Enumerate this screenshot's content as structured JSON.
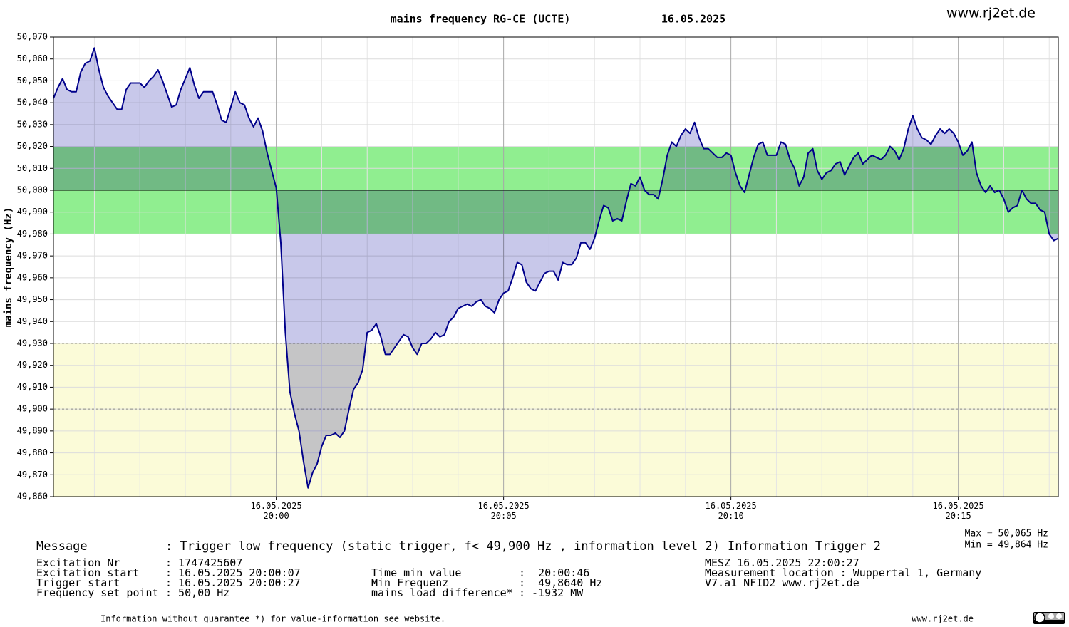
{
  "chart_data": {
    "type": "line",
    "title": "mains frequency RG-CE (UCTE)",
    "date": "16.05.2025",
    "site": "www.rj2et.de",
    "ylabel": "mains frequency (Hz)",
    "color": "#00008b",
    "area_color": "#c8c8ea",
    "grid": true,
    "xlim": [
      1195.1,
      1217.2
    ],
    "xticks": [
      {
        "value": 1200,
        "label": "16.05.2025\n20:00"
      },
      {
        "value": 1205,
        "label": "16.05.2025\n20:05"
      },
      {
        "value": 1210,
        "label": "16.05.2025\n20:10"
      },
      {
        "value": 1215,
        "label": "16.05.2025\n20:15"
      }
    ],
    "xminorticks": [
      1196,
      1197,
      1198,
      1199,
      1201,
      1202,
      1203,
      1204,
      1206,
      1207,
      1208,
      1209,
      1211,
      1212,
      1213,
      1214,
      1216,
      1217
    ],
    "ylim": [
      49.86,
      50.07
    ],
    "yticks": [
      {
        "value": 49.86,
        "label": "49,860"
      },
      {
        "value": 49.87,
        "label": "49,870"
      },
      {
        "value": 49.88,
        "label": "49,880"
      },
      {
        "value": 49.89,
        "label": "49,890"
      },
      {
        "value": 49.9,
        "label": "49,900"
      },
      {
        "value": 49.91,
        "label": "49,910"
      },
      {
        "value": 49.92,
        "label": "49,920"
      },
      {
        "value": 49.93,
        "label": "49,930"
      },
      {
        "value": 49.94,
        "label": "49,940"
      },
      {
        "value": 49.95,
        "label": "49,950"
      },
      {
        "value": 49.96,
        "label": "49,960"
      },
      {
        "value": 49.97,
        "label": "49,970"
      },
      {
        "value": 49.98,
        "label": "49,980"
      },
      {
        "value": 49.99,
        "label": "49,990"
      },
      {
        "value": 50,
        "label": "50,000"
      },
      {
        "value": 50.01,
        "label": "50,010"
      },
      {
        "value": 50.02,
        "label": "50,020"
      },
      {
        "value": 50.03,
        "label": "50,030"
      },
      {
        "value": 50.04,
        "label": "50,040"
      },
      {
        "value": 50.05,
        "label": "50,050"
      },
      {
        "value": 50.06,
        "label": "50,060"
      },
      {
        "value": 50.07,
        "label": "50,070"
      }
    ],
    "baseline": 50,
    "bands": [
      {
        "from": 49.98,
        "to": 50.02,
        "color": "#90ee90"
      },
      {
        "from": 49.86,
        "to": 49.93,
        "color": "#fbfbd8"
      }
    ],
    "reference_lines": [
      49.93,
      49.9
    ],
    "x": [
      1195.1,
      1195.2,
      1195.3,
      1195.4,
      1195.5,
      1195.6,
      1195.7,
      1195.8,
      1195.9,
      1196,
      1196.1,
      1196.2,
      1196.3,
      1196.4,
      1196.5,
      1196.6,
      1196.7,
      1196.8,
      1196.9,
      1197,
      1197.1,
      1197.2,
      1197.3,
      1197.4,
      1197.5,
      1197.6,
      1197.7,
      1197.8,
      1197.9,
      1198,
      1198.1,
      1198.2,
      1198.3,
      1198.4,
      1198.5,
      1198.6,
      1198.7,
      1198.8,
      1198.9,
      1199,
      1199.1,
      1199.2,
      1199.3,
      1199.4,
      1199.5,
      1199.6,
      1199.7,
      1199.8,
      1199.9,
      1200,
      1200.1,
      1200.2,
      1200.3,
      1200.4,
      1200.5,
      1200.6,
      1200.7,
      1200.8,
      1200.9,
      1201,
      1201.1,
      1201.2,
      1201.3,
      1201.4,
      1201.5,
      1201.6,
      1201.7,
      1201.8,
      1201.9,
      1202,
      1202.1,
      1202.2,
      1202.3,
      1202.4,
      1202.5,
      1202.6,
      1202.7,
      1202.8,
      1202.9,
      1203,
      1203.1,
      1203.2,
      1203.3,
      1203.4,
      1203.5,
      1203.6,
      1203.7,
      1203.8,
      1203.9,
      1204,
      1204.1,
      1204.2,
      1204.3,
      1204.4,
      1204.5,
      1204.6,
      1204.7,
      1204.8,
      1204.9,
      1205,
      1205.1,
      1205.2,
      1205.3,
      1205.4,
      1205.5,
      1205.6,
      1205.7,
      1205.8,
      1205.9,
      1206,
      1206.1,
      1206.2,
      1206.3,
      1206.4,
      1206.5,
      1206.6,
      1206.7,
      1206.8,
      1206.9,
      1207,
      1207.1,
      1207.2,
      1207.3,
      1207.4,
      1207.5,
      1207.6,
      1207.7,
      1207.8,
      1207.9,
      1208,
      1208.1,
      1208.2,
      1208.3,
      1208.4,
      1208.5,
      1208.6,
      1208.7,
      1208.8,
      1208.9,
      1209,
      1209.1,
      1209.2,
      1209.3,
      1209.4,
      1209.5,
      1209.6,
      1209.7,
      1209.8,
      1209.9,
      1210,
      1210.1,
      1210.2,
      1210.3,
      1210.4,
      1210.5,
      1210.6,
      1210.7,
      1210.8,
      1210.9,
      1211,
      1211.1,
      1211.2,
      1211.3,
      1211.4,
      1211.5,
      1211.6,
      1211.7,
      1211.8,
      1211.9,
      1212,
      1212.1,
      1212.2,
      1212.3,
      1212.4,
      1212.5,
      1212.6,
      1212.7,
      1212.8,
      1212.9,
      1213,
      1213.1,
      1213.2,
      1213.3,
      1213.4,
      1213.5,
      1213.6,
      1213.7,
      1213.8,
      1213.9,
      1214,
      1214.1,
      1214.2,
      1214.3,
      1214.4,
      1214.5,
      1214.6,
      1214.7,
      1214.8,
      1214.9,
      1215,
      1215.1,
      1215.2,
      1215.3,
      1215.4,
      1215.5,
      1215.6,
      1215.7,
      1215.8,
      1215.9,
      1216,
      1216.1,
      1216.2,
      1216.3,
      1216.4,
      1216.5,
      1216.6,
      1216.7,
      1216.8,
      1216.9,
      1217,
      1217.1,
      1217.2
    ],
    "values": [
      50.042,
      50.047,
      50.051,
      50.046,
      50.045,
      50.045,
      50.054,
      50.058,
      50.059,
      50.065,
      50.055,
      50.047,
      50.043,
      50.04,
      50.037,
      50.037,
      50.046,
      50.049,
      50.049,
      50.049,
      50.047,
      50.05,
      50.052,
      50.055,
      50.05,
      50.044,
      50.038,
      50.039,
      50.046,
      50.051,
      50.056,
      50.048,
      50.042,
      50.045,
      50.045,
      50.045,
      50.039,
      50.032,
      50.031,
      50.038,
      50.045,
      50.04,
      50.039,
      50.033,
      50.029,
      50.033,
      50.027,
      50.017,
      50.009,
      50.001,
      49.976,
      49.935,
      49.908,
      49.898,
      49.89,
      49.876,
      49.864,
      49.871,
      49.875,
      49.883,
      49.888,
      49.888,
      49.889,
      49.887,
      49.89,
      49.9,
      49.909,
      49.912,
      49.918,
      49.935,
      49.936,
      49.939,
      49.933,
      49.925,
      49.925,
      49.928,
      49.931,
      49.934,
      49.933,
      49.928,
      49.925,
      49.93,
      49.93,
      49.932,
      49.935,
      49.933,
      49.934,
      49.94,
      49.942,
      49.946,
      49.947,
      49.948,
      49.947,
      49.949,
      49.95,
      49.947,
      49.946,
      49.944,
      49.95,
      49.953,
      49.954,
      49.96,
      49.967,
      49.966,
      49.958,
      49.955,
      49.954,
      49.958,
      49.962,
      49.963,
      49.963,
      49.959,
      49.967,
      49.966,
      49.966,
      49.969,
      49.976,
      49.976,
      49.973,
      49.978,
      49.986,
      49.993,
      49.992,
      49.986,
      49.987,
      49.986,
      49.995,
      50.003,
      50.002,
      50.006,
      50.0,
      49.998,
      49.998,
      49.996,
      50.005,
      50.016,
      50.022,
      50.02,
      50.025,
      50.028,
      50.026,
      50.031,
      50.024,
      50.019,
      50.019,
      50.017,
      50.015,
      50.015,
      50.017,
      50.016,
      50.008,
      50.002,
      49.999,
      50.007,
      50.015,
      50.021,
      50.022,
      50.016,
      50.016,
      50.016,
      50.022,
      50.021,
      50.014,
      50.01,
      50.002,
      50.006,
      50.017,
      50.019,
      50.009,
      50.005,
      50.008,
      50.009,
      50.012,
      50.013,
      50.007,
      50.011,
      50.015,
      50.017,
      50.012,
      50.014,
      50.016,
      50.015,
      50.014,
      50.016,
      50.02,
      50.018,
      50.014,
      50.019,
      50.028,
      50.034,
      50.028,
      50.024,
      50.023,
      50.021,
      50.025,
      50.028,
      50.026,
      50.028,
      50.026,
      50.022,
      50.016,
      50.018,
      50.022,
      50.008,
      50.002,
      49.999,
      50.002,
      49.999,
      50.0,
      49.996,
      49.99,
      49.992,
      49.993,
      50.0,
      49.996,
      49.994,
      49.994,
      49.991,
      49.99,
      49.98,
      49.977,
      49.978
    ],
    "stats": [
      "Max = 50,065 Hz",
      "Min = 49,864 Hz"
    ]
  },
  "info": {
    "message_key": "Message",
    "message_value": ": Trigger low frequency (static trigger, f< 49,900 Hz , information level 2)",
    "message_extra": "Information Trigger 2",
    "left": [
      {
        "key": "Excitation Nr",
        "value": ": 1747425607"
      },
      {
        "key": "Excitation start",
        "value": ": 16.05.2025 20:00:07"
      },
      {
        "key": "Trigger start",
        "value": ": 16.05.2025 20:00:27"
      },
      {
        "key": "Frequency set point",
        "value": ": 50,00 Hz"
      }
    ],
    "middle": [
      {
        "key": "Time min value",
        "value": ":  20:00:46"
      },
      {
        "key": "Min Frequenz",
        "value": ":  49,8640 Hz"
      },
      {
        "key": "mains load difference*",
        "value": ": -1932 MW"
      }
    ],
    "right": [
      "MESZ 16.05.2025 22:00:27",
      "Measurement location : Wuppertal 1, Germany",
      "V7.a1 NFID2 www.rj2et.de"
    ],
    "footer_note": "Information without guarantee    *) for value-information see website.",
    "footer_site": "www.rj2et.de"
  }
}
